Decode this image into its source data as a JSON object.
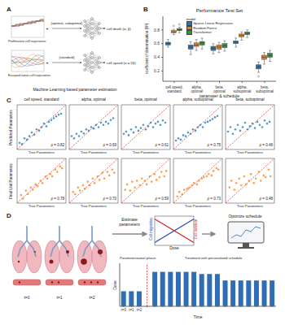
{
  "panel_labels": [
    "A",
    "B",
    "C",
    "D"
  ],
  "panel_a": {
    "trajectories": [
      "Proliferative cell trajectories",
      "Escaped tumor cell trajectories"
    ],
    "operator": "+",
    "schedules": [
      "{optimal, suboptimal}",
      "{standard}"
    ],
    "outputs": [
      "cell death (α, β)",
      "cell speed (α = 2β)"
    ],
    "caption": "Machine Learning based parameter estimation"
  },
  "chart_data": [
    {
      "type": "box",
      "title": "Performance Test Set",
      "x_label": "parameter & schedule",
      "y_label": "coefficient of determination (R²)",
      "categories": [
        "cell speed, standard",
        "alpha, optimal",
        "beta, optimal",
        "alpha, suboptimal",
        "beta, suboptimal"
      ],
      "series": [
        {
          "name": "Sparse Linear Regression",
          "color": "#3274a1",
          "values": [
            {
              "min": 0.55,
              "q1": 0.58,
              "median": 0.6,
              "q3": 0.62,
              "max": 0.66,
              "outliers": []
            },
            {
              "min": 0.44,
              "q1": 0.52,
              "median": 0.55,
              "q3": 0.58,
              "max": 0.63,
              "outliers": []
            },
            {
              "min": 0.45,
              "q1": 0.5,
              "median": 0.53,
              "q3": 0.56,
              "max": 0.6,
              "outliers": []
            },
            {
              "min": 0.55,
              "q1": 0.6,
              "median": 0.62,
              "q3": 0.64,
              "max": 0.68,
              "outliers": []
            },
            {
              "min": 0.18,
              "q1": 0.23,
              "median": 0.26,
              "q3": 0.29,
              "max": 0.33,
              "outliers": [
                0.12
              ]
            }
          ]
        },
        {
          "name": "Random Forest",
          "color": "#e1812c",
          "values": [
            {
              "min": 0.73,
              "q1": 0.76,
              "median": 0.77,
              "q3": 0.79,
              "max": 0.81,
              "outliers": [
                0.86
              ]
            },
            {
              "min": 0.5,
              "q1": 0.56,
              "median": 0.58,
              "q3": 0.61,
              "max": 0.66,
              "outliers": []
            },
            {
              "min": 0.47,
              "q1": 0.52,
              "median": 0.55,
              "q3": 0.58,
              "max": 0.62,
              "outliers": []
            },
            {
              "min": 0.65,
              "q1": 0.7,
              "median": 0.72,
              "q3": 0.74,
              "max": 0.77,
              "outliers": []
            },
            {
              "min": 0.3,
              "q1": 0.37,
              "median": 0.4,
              "q3": 0.43,
              "max": 0.47,
              "outliers": []
            }
          ]
        },
        {
          "name": "Transformer",
          "color": "#3a923a",
          "values": [
            {
              "min": 0.76,
              "q1": 0.79,
              "median": 0.8,
              "q3": 0.82,
              "max": 0.84,
              "outliers": [
                0.88
              ]
            },
            {
              "min": 0.52,
              "q1": 0.58,
              "median": 0.61,
              "q3": 0.63,
              "max": 0.68,
              "outliers": []
            },
            {
              "min": 0.49,
              "q1": 0.54,
              "median": 0.57,
              "q3": 0.6,
              "max": 0.64,
              "outliers": []
            },
            {
              "min": 0.69,
              "q1": 0.73,
              "median": 0.75,
              "q3": 0.77,
              "max": 0.8,
              "outliers": []
            },
            {
              "min": 0.34,
              "q1": 0.4,
              "median": 0.43,
              "q3": 0.46,
              "max": 0.5,
              "outliers": []
            }
          ]
        }
      ],
      "ylim": [
        0.05,
        1.0
      ],
      "yticks": [
        0.2,
        0.4,
        0.6,
        0.8
      ],
      "legend": "upper center",
      "legend_title": "model"
    },
    {
      "type": "scatter",
      "title": "cell speed, standard",
      "y_label": "Predicted Parameters",
      "x_label": "True Parameters",
      "annotation": "ρ = 0.82",
      "color": "#1f77b4",
      "x": [
        0.05,
        0.1,
        0.15,
        0.2,
        0.25,
        0.3,
        0.35,
        0.4,
        0.45,
        0.5,
        0.55,
        0.6,
        0.65,
        0.7,
        0.75,
        0.8,
        0.85,
        0.9
      ],
      "y": [
        0.15,
        0.12,
        0.25,
        0.22,
        0.3,
        0.38,
        0.33,
        0.45,
        0.42,
        0.5,
        0.58,
        0.52,
        0.62,
        0.66,
        0.7,
        0.74,
        0.78,
        0.8
      ],
      "xlim": [
        0,
        1
      ],
      "ylim": [
        0,
        1
      ],
      "tick_labels": false
    },
    {
      "type": "scatter",
      "title": "alpha, optimal",
      "x_label": "True Parameters",
      "annotation": "ρ = 0.69",
      "color": "#1f77b4",
      "x": [
        0.05,
        0.1,
        0.15,
        0.2,
        0.25,
        0.3,
        0.35,
        0.4,
        0.45,
        0.5,
        0.55,
        0.6,
        0.65,
        0.7,
        0.75,
        0.8,
        0.85,
        0.9
      ],
      "y": [
        0.3,
        0.25,
        0.35,
        0.3,
        0.4,
        0.36,
        0.45,
        0.42,
        0.5,
        0.47,
        0.55,
        0.5,
        0.6,
        0.55,
        0.62,
        0.58,
        0.66,
        0.7
      ],
      "xlim": [
        0,
        1
      ],
      "ylim": [
        0,
        1
      ],
      "tick_labels": false
    },
    {
      "type": "scatter",
      "title": "beta, optimal",
      "x_label": "True Parameters",
      "annotation": "ρ = 0.61",
      "color": "#1f77b4",
      "x": [
        0.05,
        0.1,
        0.15,
        0.2,
        0.25,
        0.3,
        0.35,
        0.4,
        0.45,
        0.5,
        0.55,
        0.6,
        0.65,
        0.7,
        0.75,
        0.8,
        0.85,
        0.9
      ],
      "y": [
        0.35,
        0.4,
        0.32,
        0.45,
        0.38,
        0.5,
        0.42,
        0.48,
        0.55,
        0.45,
        0.52,
        0.6,
        0.5,
        0.58,
        0.62,
        0.55,
        0.65,
        0.6
      ],
      "xlim": [
        0,
        1
      ],
      "ylim": [
        0,
        1
      ],
      "tick_labels": false
    },
    {
      "type": "scatter",
      "title": "alpha, suboptimal",
      "x_label": "True Parameters",
      "annotation": "ρ = 0.75",
      "color": "#1f77b4",
      "x": [
        0.05,
        0.1,
        0.15,
        0.2,
        0.25,
        0.3,
        0.35,
        0.4,
        0.45,
        0.5,
        0.55,
        0.6,
        0.65,
        0.7,
        0.75,
        0.8,
        0.85,
        0.9
      ],
      "y": [
        0.2,
        0.25,
        0.22,
        0.32,
        0.3,
        0.38,
        0.35,
        0.45,
        0.42,
        0.5,
        0.55,
        0.5,
        0.6,
        0.62,
        0.65,
        0.68,
        0.72,
        0.75
      ],
      "xlim": [
        0,
        1
      ],
      "ylim": [
        0,
        1
      ],
      "tick_labels": false
    },
    {
      "type": "scatter",
      "title": "beta, suboptimal",
      "x_label": "True Parameters",
      "annotation": "ρ = 0.46",
      "color": "#1f77b4",
      "x": [
        0.05,
        0.1,
        0.15,
        0.2,
        0.25,
        0.3,
        0.35,
        0.4,
        0.45,
        0.5,
        0.55,
        0.6,
        0.65,
        0.7,
        0.75,
        0.8,
        0.85,
        0.9
      ],
      "y": [
        0.4,
        0.5,
        0.35,
        0.45,
        0.55,
        0.42,
        0.5,
        0.6,
        0.45,
        0.52,
        0.58,
        0.48,
        0.62,
        0.55,
        0.5,
        0.65,
        0.58,
        0.62
      ],
      "xlim": [
        0,
        1
      ],
      "ylim": [
        0,
        1
      ],
      "tick_labels": false
    },
    {
      "type": "scatter",
      "y_label": "Final Unit Parameters",
      "x_label": "True Parameters",
      "annotation": "ρ = 0.78",
      "color": "#ff7f0e",
      "x": [
        0.08,
        0.12,
        0.18,
        0.22,
        0.28,
        0.32,
        0.38,
        0.42,
        0.48,
        0.52,
        0.58,
        0.62,
        0.68,
        0.72,
        0.78,
        0.82,
        0.88,
        0.92
      ],
      "y": [
        0.18,
        0.1,
        0.28,
        0.2,
        0.35,
        0.3,
        0.42,
        0.38,
        0.5,
        0.45,
        0.6,
        0.55,
        0.65,
        0.6,
        0.75,
        0.7,
        0.82,
        0.78
      ],
      "xlim": [
        0,
        1
      ],
      "ylim": [
        0,
        1
      ],
      "tick_labels": false
    },
    {
      "type": "scatter",
      "x_label": "True Parameters",
      "annotation": "ρ = 0.70",
      "color": "#ff7f0e",
      "x": [
        0.08,
        0.12,
        0.18,
        0.22,
        0.28,
        0.32,
        0.38,
        0.42,
        0.48,
        0.52,
        0.58,
        0.62,
        0.68,
        0.72,
        0.78,
        0.82,
        0.88,
        0.92
      ],
      "y": [
        0.25,
        0.2,
        0.35,
        0.28,
        0.4,
        0.32,
        0.48,
        0.4,
        0.55,
        0.45,
        0.6,
        0.52,
        0.68,
        0.55,
        0.7,
        0.62,
        0.75,
        0.68
      ],
      "xlim": [
        0,
        1
      ],
      "ylim": [
        0,
        1
      ],
      "tick_labels": false
    },
    {
      "type": "scatter",
      "x_label": "True Parameters",
      "annotation": "ρ = 0.59",
      "color": "#ff7f0e",
      "x": [
        0.08,
        0.12,
        0.18,
        0.22,
        0.28,
        0.32,
        0.38,
        0.42,
        0.48,
        0.52,
        0.58,
        0.62,
        0.68,
        0.72,
        0.78,
        0.82,
        0.88,
        0.92
      ],
      "y": [
        0.3,
        0.42,
        0.28,
        0.48,
        0.35,
        0.5,
        0.4,
        0.55,
        0.5,
        0.42,
        0.6,
        0.48,
        0.65,
        0.52,
        0.58,
        0.7,
        0.6,
        0.72
      ],
      "xlim": [
        0,
        1
      ],
      "ylim": [
        0,
        1
      ],
      "tick_labels": false
    },
    {
      "type": "scatter",
      "x_label": "True Parameters",
      "annotation": "ρ = 0.73",
      "color": "#ff7f0e",
      "x": [
        0.08,
        0.12,
        0.18,
        0.22,
        0.28,
        0.32,
        0.38,
        0.42,
        0.48,
        0.52,
        0.58,
        0.62,
        0.68,
        0.72,
        0.78,
        0.82,
        0.88,
        0.92
      ],
      "y": [
        0.15,
        0.25,
        0.2,
        0.3,
        0.32,
        0.35,
        0.4,
        0.45,
        0.42,
        0.5,
        0.55,
        0.58,
        0.6,
        0.65,
        0.62,
        0.72,
        0.78,
        0.75
      ],
      "xlim": [
        0,
        1
      ],
      "ylim": [
        0,
        1
      ],
      "tick_labels": false
    },
    {
      "type": "scatter",
      "x_label": "True Parameters",
      "annotation": "ρ = 0.48",
      "color": "#ff7f0e",
      "x": [
        0.08,
        0.12,
        0.18,
        0.22,
        0.28,
        0.32,
        0.38,
        0.42,
        0.48,
        0.52,
        0.58,
        0.62,
        0.68,
        0.72,
        0.78,
        0.82,
        0.88,
        0.92
      ],
      "y": [
        0.35,
        0.5,
        0.3,
        0.45,
        0.55,
        0.4,
        0.6,
        0.42,
        0.5,
        0.65,
        0.45,
        0.55,
        0.7,
        0.5,
        0.62,
        0.58,
        0.75,
        0.6
      ],
      "xlim": [
        0,
        1
      ],
      "ylim": [
        0,
        1
      ],
      "tick_labels": false
    },
    {
      "type": "line",
      "x_label": "Dose",
      "x": [
        0,
        1
      ],
      "series": [
        {
          "name": "Cell migration",
          "color": "#2a4fb8",
          "values": [
            0.1,
            0.9
          ]
        },
        {
          "name": "Cell survival",
          "color": "#d62728",
          "values": [
            0.9,
            0.1
          ]
        }
      ],
      "xlim": [
        0,
        1
      ],
      "ylim": [
        0,
        1
      ],
      "tick_labels": false
    },
    {
      "type": "bar",
      "x_label": "Time",
      "y_label": "Dose",
      "categories": [
        "t=0",
        "t=1",
        "t=2",
        null,
        null,
        null,
        null,
        null,
        null,
        null,
        null,
        null,
        null,
        null,
        null,
        null,
        null,
        null,
        null,
        null
      ],
      "values": [
        0.35,
        0.35,
        0.35,
        null,
        0.8,
        0.8,
        0.8,
        0.8,
        0.8,
        0.8,
        0.75,
        0.75,
        0.75,
        0.6,
        0.6,
        0.6,
        0.6,
        0.6,
        0.6,
        0.6
      ],
      "color": "#2f6db5",
      "ylim": [
        0,
        1
      ],
      "tick_labels": "x",
      "annotations": [
        "Parameterization phase",
        "Treatment with personalized schedule"
      ]
    }
  ],
  "panel_d": {
    "time_labels": [
      "t=0",
      "t=1",
      "t=2"
    ],
    "steps": [
      "Estimate parameters",
      "Optimize schedule"
    ]
  }
}
